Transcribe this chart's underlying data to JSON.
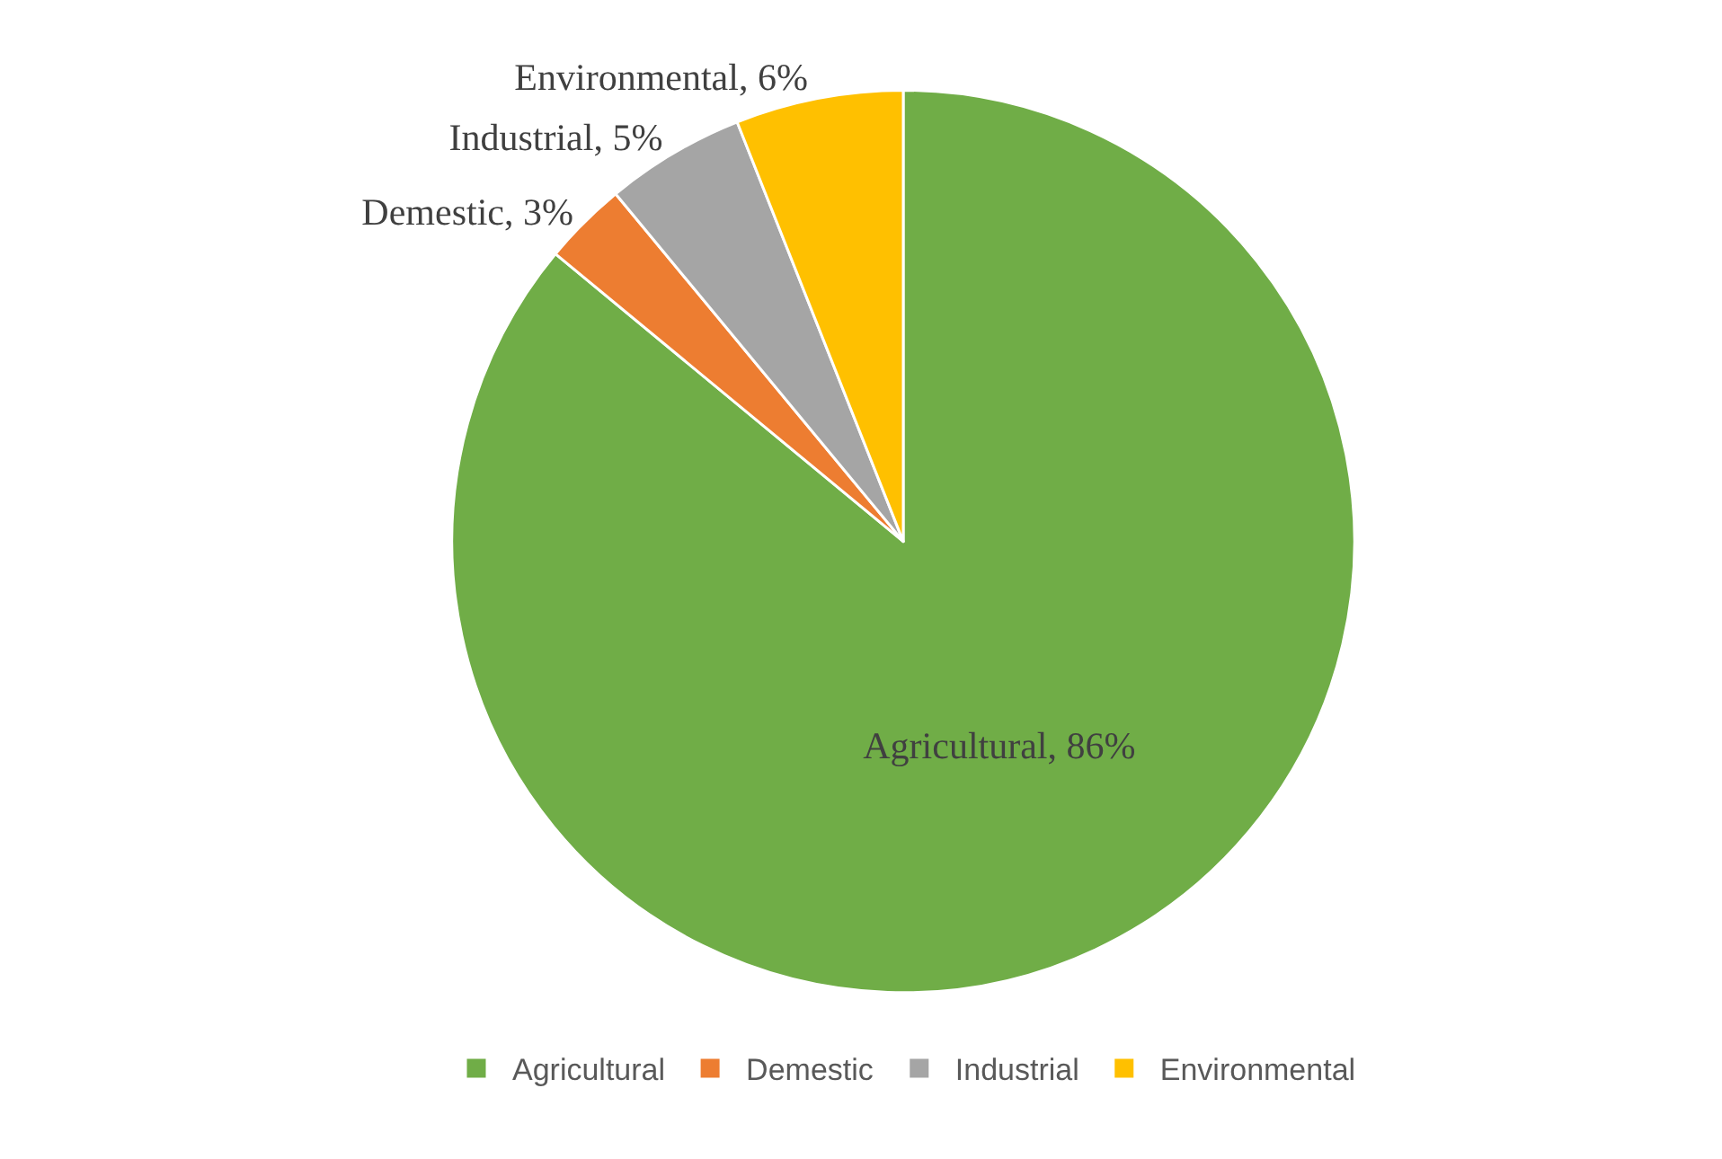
{
  "chart_data": {
    "type": "pie",
    "categories": [
      "Agricultural",
      "Demestic",
      "Industrial",
      "Environmental"
    ],
    "values": [
      86,
      3,
      5,
      6
    ],
    "colors": [
      "#70ad47",
      "#ed7d31",
      "#a5a5a5",
      "#ffc000"
    ],
    "value_labels": [
      "Agricultural, 86%",
      "Demestic, 3%",
      "Industrial, 5%",
      "Environmental, 6%"
    ],
    "legend": "bottom"
  }
}
